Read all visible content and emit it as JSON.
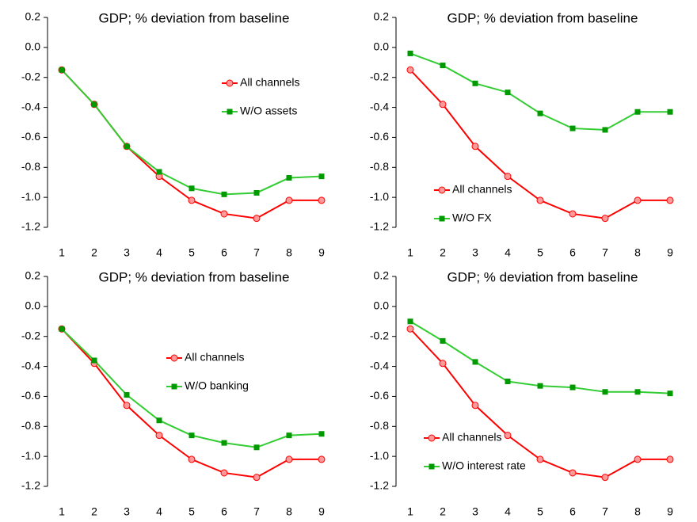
{
  "chart_data": [
    {
      "type": "line",
      "title": "GDP; % deviation from baseline",
      "categories": [
        "1",
        "2",
        "3",
        "4",
        "5",
        "6",
        "7",
        "8",
        "9"
      ],
      "series": [
        {
          "name": "All channels",
          "color": "#ff0000",
          "marker": "circle",
          "marker_color": "#ff9999",
          "values": [
            -0.15,
            -0.38,
            -0.66,
            -0.86,
            -1.02,
            -1.11,
            -1.14,
            -1.02,
            -1.02
          ]
        },
        {
          "name": "W/O assets",
          "color": "#33cc33",
          "marker": "square",
          "marker_color": "#009900",
          "values": [
            -0.15,
            -0.38,
            -0.66,
            -0.83,
            -0.94,
            -0.98,
            -0.97,
            -0.87,
            -0.86
          ]
        }
      ],
      "ylim": [
        -1.2,
        0.2
      ],
      "yticks": [
        0.2,
        {
          "value": 0,
          "label": "0.0"
        },
        -0.2,
        -0.4,
        -0.6,
        -0.8,
        {
          "value": -1,
          "label": "-1.0"
        },
        -1.2
      ],
      "legend": "upper right"
    },
    {
      "type": "line",
      "title": "GDP; % deviation from baseline",
      "categories": [
        "1",
        "2",
        "3",
        "4",
        "5",
        "6",
        "7",
        "8",
        "9"
      ],
      "series": [
        {
          "name": "All channels",
          "color": "#ff0000",
          "marker": "circle",
          "marker_color": "#ff9999",
          "values": [
            -0.15,
            -0.38,
            -0.66,
            -0.86,
            -1.02,
            -1.11,
            -1.14,
            -1.02,
            -1.02
          ]
        },
        {
          "name": "W/O FX",
          "color": "#33cc33",
          "marker": "square",
          "marker_color": "#009900",
          "values": [
            -0.04,
            -0.12,
            -0.24,
            -0.3,
            -0.44,
            -0.54,
            -0.55,
            -0.43,
            -0.43
          ]
        }
      ],
      "ylim": [
        -1.2,
        0.2
      ],
      "yticks": [
        0.2,
        {
          "value": 0,
          "label": "0.0"
        },
        -0.2,
        -0.4,
        -0.6,
        -0.8,
        {
          "value": -1,
          "label": "-1.0"
        },
        -1.2
      ],
      "legend": "lower left"
    },
    {
      "type": "line",
      "title": "GDP; % deviation from baseline",
      "categories": [
        "1",
        "2",
        "3",
        "4",
        "5",
        "6",
        "7",
        "8",
        "9"
      ],
      "series": [
        {
          "name": "All channels",
          "color": "#ff0000",
          "marker": "circle",
          "marker_color": "#ff9999",
          "values": [
            -0.15,
            -0.38,
            -0.66,
            -0.86,
            -1.02,
            -1.11,
            -1.14,
            -1.02,
            -1.02
          ]
        },
        {
          "name": "W/O banking",
          "color": "#33cc33",
          "marker": "square",
          "marker_color": "#009900",
          "values": [
            -0.15,
            -0.36,
            -0.59,
            -0.76,
            -0.86,
            -0.91,
            -0.94,
            -0.86,
            -0.85
          ]
        }
      ],
      "ylim": [
        -1.2,
        0.2
      ],
      "yticks": [
        0.2,
        {
          "value": 0,
          "label": "0.0"
        },
        -0.2,
        -0.4,
        -0.6,
        -0.8,
        {
          "value": -1,
          "label": "-1.0"
        },
        -1.2
      ],
      "legend": "center"
    },
    {
      "type": "line",
      "title": "GDP; % deviation from baseline",
      "categories": [
        "1",
        "2",
        "3",
        "4",
        "5",
        "6",
        "7",
        "8",
        "9"
      ],
      "series": [
        {
          "name": "All channels",
          "color": "#ff0000",
          "marker": "circle",
          "marker_color": "#ff9999",
          "values": [
            -0.15,
            -0.38,
            -0.66,
            -0.86,
            -1.02,
            -1.11,
            -1.14,
            -1.02,
            -1.02
          ]
        },
        {
          "name": "W/O interest rate",
          "color": "#33cc33",
          "marker": "square",
          "marker_color": "#009900",
          "values": [
            -0.1,
            -0.23,
            -0.37,
            -0.5,
            -0.53,
            -0.54,
            -0.57,
            -0.57,
            -0.58
          ]
        }
      ],
      "ylim": [
        -1.2,
        0.2
      ],
      "yticks": [
        0.2,
        {
          "value": 0,
          "label": "0.0"
        },
        -0.2,
        -0.4,
        -0.6,
        -0.8,
        {
          "value": -1,
          "label": "-1.0"
        },
        -1.2
      ],
      "legend": "bottom left"
    }
  ]
}
